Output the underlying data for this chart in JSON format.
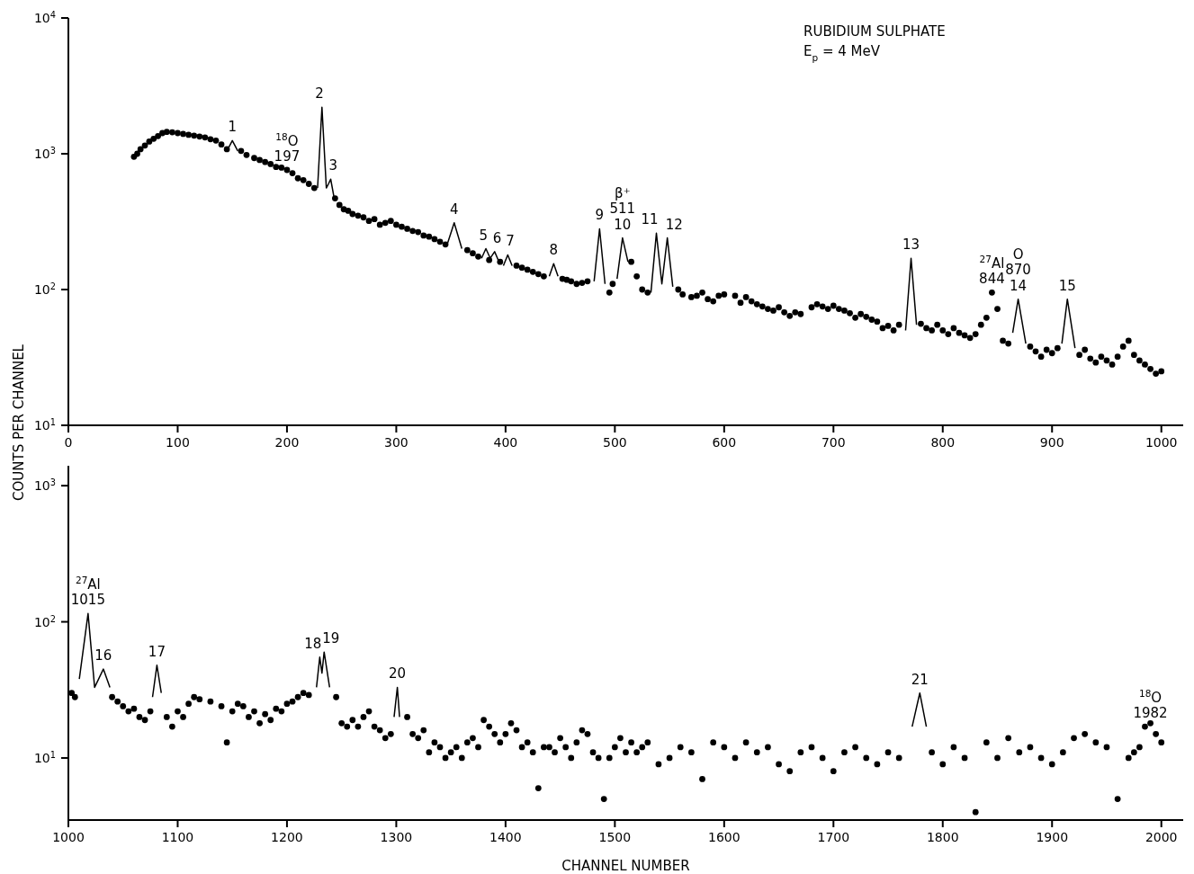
{
  "chart_data": [
    {
      "type": "scatter",
      "title": "RUBIDIUM SULPHATE",
      "subtitle": "E$_{p}$ = 4 MeV",
      "ylabel": "COUNTS PER CHANNEL",
      "log": "y",
      "grid": false,
      "xlim": [
        0,
        1020
      ],
      "xticks": [
        0,
        100,
        200,
        300,
        400,
        500,
        600,
        700,
        800,
        900,
        1000
      ],
      "ylim": [
        10,
        10000
      ],
      "yticks": [
        {
          "value": 10,
          "label": "10$^{1}$"
        },
        {
          "value": 100,
          "label": "10$^{2}$"
        },
        {
          "value": 1000,
          "label": "10$^{3}$"
        },
        {
          "value": 10000,
          "label": "10$^{4}$"
        }
      ],
      "annotations": [
        {
          "text": "1",
          "x": 150,
          "y": 1250
        },
        {
          "text": "$^{18}$O\n197",
          "x": 200,
          "y": 760
        },
        {
          "text": "2",
          "x": 232,
          "y": 2200
        },
        {
          "text": "3",
          "x": 240,
          "y": 650
        },
        {
          "text": "4",
          "x": 353,
          "y": 310
        },
        {
          "text": "5",
          "x": 382,
          "y": 200
        },
        {
          "text": "6",
          "x": 390,
          "y": 190
        },
        {
          "text": "7",
          "x": 402,
          "y": 180
        },
        {
          "text": "8",
          "x": 444,
          "y": 155
        },
        {
          "text": "9",
          "x": 486,
          "y": 280
        },
        {
          "text": "10",
          "x": 507,
          "y": 240
        },
        {
          "text": "β⁺\n511",
          "x": 507,
          "y": 240
        },
        {
          "text": "11",
          "x": 538,
          "y": 260
        },
        {
          "text": "12",
          "x": 548,
          "y": 240
        },
        {
          "text": "13",
          "x": 771,
          "y": 170
        },
        {
          "text": "$^{27}$Al\n844",
          "x": 845,
          "y": 95
        },
        {
          "text": "14",
          "x": 869,
          "y": 85
        },
        {
          "text": "O\n870",
          "x": 869,
          "y": 85
        },
        {
          "text": "15",
          "x": 914,
          "y": 85
        }
      ],
      "series": [
        {
          "type": "scatter",
          "color": "#000000",
          "marker": "circle",
          "x": [
            60,
            63,
            66,
            70,
            74,
            78,
            82,
            86,
            90,
            95,
            100,
            105,
            110,
            115,
            120,
            125,
            130,
            135,
            140,
            145,
            158,
            163,
            170,
            175,
            180,
            185,
            190,
            195,
            200,
            205,
            210,
            215,
            220,
            225,
            244,
            248,
            252,
            256,
            260,
            265,
            270,
            275,
            280,
            285,
            290,
            295,
            300,
            305,
            310,
            315,
            320,
            325,
            330,
            335,
            340,
            345,
            365,
            370,
            375,
            385,
            395,
            410,
            415,
            420,
            425,
            430,
            435,
            452,
            456,
            460,
            465,
            470,
            475,
            495,
            498,
            515,
            520,
            525,
            530,
            558,
            562,
            570,
            575,
            580,
            585,
            590,
            595,
            600,
            610,
            615,
            620,
            625,
            630,
            635,
            640,
            645,
            650,
            655,
            660,
            665,
            670,
            680,
            685,
            690,
            695,
            700,
            705,
            710,
            715,
            720,
            725,
            730,
            735,
            740,
            745,
            750,
            755,
            760,
            780,
            785,
            790,
            795,
            800,
            805,
            810,
            815,
            820,
            825,
            830,
            835,
            840,
            845,
            850,
            855,
            860,
            880,
            885,
            890,
            895,
            900,
            905,
            925,
            930,
            935,
            940,
            945,
            950,
            955,
            960,
            965,
            970,
            975,
            980,
            985,
            990,
            995,
            1000
          ],
          "values": [
            950,
            1000,
            1080,
            1150,
            1230,
            1290,
            1350,
            1420,
            1450,
            1440,
            1420,
            1400,
            1380,
            1360,
            1340,
            1320,
            1280,
            1250,
            1170,
            1080,
            1050,
            980,
            930,
            900,
            870,
            840,
            800,
            790,
            760,
            720,
            660,
            640,
            600,
            560,
            470,
            420,
            390,
            380,
            360,
            350,
            340,
            320,
            330,
            300,
            310,
            320,
            300,
            290,
            280,
            270,
            265,
            250,
            245,
            235,
            225,
            215,
            195,
            185,
            175,
            165,
            160,
            150,
            145,
            140,
            135,
            130,
            125,
            120,
            118,
            115,
            110,
            112,
            115,
            95,
            110,
            160,
            125,
            100,
            95,
            100,
            92,
            88,
            90,
            95,
            85,
            82,
            90,
            92,
            90,
            80,
            88,
            82,
            78,
            75,
            72,
            70,
            74,
            68,
            64,
            68,
            66,
            74,
            78,
            75,
            72,
            76,
            72,
            70,
            67,
            62,
            66,
            63,
            60,
            58,
            52,
            54,
            50,
            55,
            56,
            52,
            50,
            55,
            50,
            47,
            52,
            48,
            46,
            44,
            47,
            55,
            62,
            95,
            72,
            42,
            40,
            38,
            35,
            32,
            36,
            34,
            37,
            33,
            36,
            31,
            29,
            32,
            30,
            28,
            32,
            38,
            42,
            33,
            30,
            28,
            26,
            24,
            25
          ]
        },
        {
          "type": "line",
          "color": "#000000",
          "marker": "none",
          "line_style": "solid",
          "x": [
            145,
            150,
            155,
            190,
            228,
            232,
            236,
            238,
            240,
            243,
            300,
            347,
            353,
            360,
            370,
            378,
            382,
            386,
            390,
            394,
            396,
            398,
            402,
            406,
            420,
            440,
            444,
            448,
            465,
            481,
            486,
            491,
            496,
            502,
            507,
            512,
            520,
            533,
            538,
            543,
            548,
            553,
            650,
            766,
            771,
            776,
            820,
            864,
            869,
            876,
            890,
            909,
            914,
            921
          ],
          "values": [
            1050,
            1250,
            1050,
            null,
            560,
            2200,
            560,
            600,
            650,
            480,
            null,
            220,
            310,
            200,
            null,
            170,
            200,
            170,
            190,
            160,
            null,
            150,
            180,
            150,
            null,
            125,
            155,
            125,
            null,
            115,
            280,
            110,
            null,
            120,
            240,
            160,
            null,
            95,
            260,
            110,
            240,
            105,
            null,
            50,
            170,
            55,
            null,
            48,
            85,
            40,
            null,
            40,
            85,
            37
          ]
        }
      ]
    },
    {
      "type": "scatter",
      "xlabel": "CHANNEL NUMBER",
      "log": "y",
      "grid": false,
      "xlim": [
        1000,
        2020
      ],
      "xticks": [
        1000,
        1100,
        1200,
        1300,
        1400,
        1500,
        1600,
        1700,
        1800,
        1900,
        2000
      ],
      "ylim": [
        3.5,
        1400
      ],
      "yticks": [
        {
          "value": 10,
          "label": "10$^{1}$"
        },
        {
          "value": 100,
          "label": "10$^{2}$"
        },
        {
          "value": 1000,
          "label": "10$^{3}$"
        }
      ],
      "annotations": [
        {
          "text": "$^{27}$Al\n1015",
          "x": 1018,
          "y": 115
        },
        {
          "text": "16",
          "x": 1032,
          "y": 45
        },
        {
          "text": "17",
          "x": 1081,
          "y": 48
        },
        {
          "text": "18",
          "x": 1230,
          "y": 55
        },
        {
          "text": "19",
          "x": 1234,
          "y": 60
        },
        {
          "text": "20",
          "x": 1301,
          "y": 33
        },
        {
          "text": "21",
          "x": 1779,
          "y": 30
        },
        {
          "text": "$^{18}$O\n1982",
          "x": 1990,
          "y": 17
        }
      ],
      "series": [
        {
          "type": "scatter",
          "color": "#000000",
          "marker": "circle",
          "x": [
            1003,
            1006,
            1040,
            1045,
            1050,
            1055,
            1060,
            1065,
            1070,
            1075,
            1090,
            1095,
            1100,
            1105,
            1110,
            1115,
            1120,
            1130,
            1140,
            1145,
            1150,
            1155,
            1160,
            1165,
            1170,
            1175,
            1180,
            1185,
            1190,
            1195,
            1200,
            1205,
            1210,
            1215,
            1220,
            1245,
            1250,
            1255,
            1260,
            1265,
            1270,
            1275,
            1280,
            1285,
            1290,
            1295,
            1310,
            1315,
            1320,
            1325,
            1330,
            1335,
            1340,
            1345,
            1350,
            1355,
            1360,
            1365,
            1370,
            1375,
            1380,
            1385,
            1390,
            1395,
            1400,
            1405,
            1410,
            1415,
            1420,
            1425,
            1430,
            1435,
            1440,
            1445,
            1450,
            1455,
            1460,
            1465,
            1470,
            1475,
            1480,
            1485,
            1490,
            1495,
            1500,
            1505,
            1510,
            1515,
            1520,
            1525,
            1530,
            1540,
            1550,
            1560,
            1570,
            1580,
            1590,
            1600,
            1610,
            1620,
            1630,
            1640,
            1650,
            1660,
            1670,
            1680,
            1690,
            1700,
            1710,
            1720,
            1730,
            1740,
            1750,
            1760,
            1790,
            1800,
            1810,
            1820,
            1830,
            1840,
            1850,
            1860,
            1870,
            1880,
            1890,
            1900,
            1910,
            1920,
            1930,
            1940,
            1950,
            1960,
            1970,
            1975,
            1980,
            1985,
            1990,
            1995,
            2000
          ],
          "values": [
            30,
            28,
            28,
            26,
            24,
            22,
            23,
            20,
            19,
            22,
            20,
            17,
            22,
            20,
            25,
            28,
            27,
            26,
            24,
            13,
            22,
            25,
            24,
            20,
            22,
            18,
            21,
            19,
            23,
            22,
            25,
            26,
            28,
            30,
            29,
            28,
            18,
            17,
            19,
            17,
            20,
            22,
            17,
            16,
            14,
            15,
            20,
            15,
            14,
            16,
            11,
            13,
            12,
            10,
            11,
            12,
            10,
            13,
            14,
            12,
            19,
            17,
            15,
            13,
            15,
            18,
            16,
            12,
            13,
            11,
            6,
            12,
            12,
            11,
            14,
            12,
            10,
            13,
            16,
            15,
            11,
            10,
            5,
            10,
            12,
            14,
            11,
            13,
            11,
            12,
            13,
            9,
            10,
            12,
            11,
            7,
            13,
            12,
            10,
            13,
            11,
            12,
            9,
            8,
            11,
            12,
            10,
            8,
            11,
            12,
            10,
            9,
            11,
            10,
            11,
            9,
            12,
            10,
            4,
            13,
            10,
            14,
            11,
            12,
            10,
            9,
            11,
            14,
            15,
            13,
            12,
            5,
            10,
            11,
            12,
            17,
            18,
            15,
            13
          ]
        },
        {
          "type": "line",
          "color": "#000000",
          "marker": "none",
          "line_style": "solid",
          "x": [
            1010,
            1018,
            1024,
            1032,
            1038,
            1060,
            1077,
            1081,
            1085,
            1150,
            1227,
            1230,
            1232,
            1234,
            1239,
            1270,
            1298,
            1301,
            1303,
            1500,
            1772,
            1779,
            1785
          ],
          "values": [
            38,
            115,
            33,
            45,
            33,
            null,
            28,
            48,
            30,
            null,
            33,
            55,
            42,
            60,
            33,
            null,
            20,
            33,
            20,
            null,
            17,
            30,
            17
          ]
        }
      ]
    }
  ]
}
